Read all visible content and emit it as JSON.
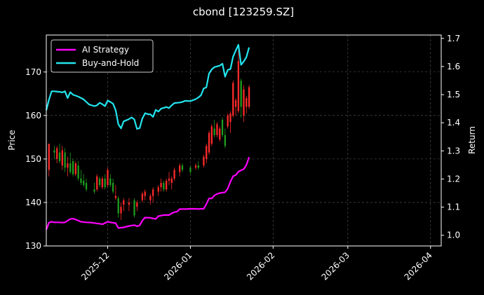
{
  "chart_data": {
    "type": "line",
    "title": "cbond [123259.SZ]",
    "ylabel_left": "Price",
    "ylabel_right": "Return",
    "ylim_left": [
      130,
      178.5
    ],
    "ylim_right": [
      0.962,
      1.712
    ],
    "xlim": [
      "2025-11-08",
      "2026-04-05"
    ],
    "yticks_left": [
      130,
      140,
      150,
      160,
      170
    ],
    "yticks_right": [
      1.0,
      1.1,
      1.2,
      1.3,
      1.4,
      1.5,
      1.6,
      1.7
    ],
    "xticks": [
      {
        "date": "2025-12-01",
        "label": "2025-12"
      },
      {
        "date": "2026-01-01",
        "label": "2026-01"
      },
      {
        "date": "2026-02-01",
        "label": "2026-02"
      },
      {
        "date": "2026-03-01",
        "label": "2026-03"
      },
      {
        "date": "2026-04-01",
        "label": "2026-04"
      }
    ],
    "grid": true,
    "legend_position": "top-left",
    "colors": {
      "ai_strategy": "#ff00ff",
      "buy_and_hold": "#22e5ee",
      "candle_up": "#ff2a2a",
      "candle_down": "#1f9e1f",
      "grid": "#5a5a5a",
      "background": "#000000"
    },
    "series": [
      {
        "name": "AI Strategy",
        "axis": "right",
        "color": "#ff00ff",
        "points": [
          [
            "2025-11-08",
            1.02
          ],
          [
            "2025-11-09",
            1.045
          ],
          [
            "2025-11-10",
            1.048
          ],
          [
            "2025-11-11",
            1.046
          ],
          [
            "2025-11-13",
            1.046
          ],
          [
            "2025-11-14",
            1.045
          ],
          [
            "2025-11-15",
            1.046
          ],
          [
            "2025-11-17",
            1.058
          ],
          [
            "2025-11-18",
            1.059
          ],
          [
            "2025-11-19",
            1.056
          ],
          [
            "2025-11-20",
            1.052
          ],
          [
            "2025-11-21",
            1.048
          ],
          [
            "2025-11-23",
            1.046
          ],
          [
            "2025-11-25",
            1.045
          ],
          [
            "2025-11-27",
            1.042
          ],
          [
            "2025-11-28",
            1.041
          ],
          [
            "2025-11-29",
            1.039
          ],
          [
            "2025-12-01",
            1.048
          ],
          [
            "2025-12-02",
            1.046
          ],
          [
            "2025-12-04",
            1.043
          ],
          [
            "2025-12-05",
            1.026
          ],
          [
            "2025-12-07",
            1.028
          ],
          [
            "2025-12-09",
            1.033
          ],
          [
            "2025-12-11",
            1.036
          ],
          [
            "2025-12-12",
            1.032
          ],
          [
            "2025-12-13",
            1.035
          ],
          [
            "2025-12-14",
            1.052
          ],
          [
            "2025-12-15",
            1.063
          ],
          [
            "2025-12-17",
            1.062
          ],
          [
            "2025-12-19",
            1.058
          ],
          [
            "2025-12-20",
            1.068
          ],
          [
            "2025-12-22",
            1.072
          ],
          [
            "2025-12-24",
            1.072
          ],
          [
            "2025-12-25",
            1.078
          ],
          [
            "2025-12-26",
            1.082
          ],
          [
            "2025-12-27",
            1.084
          ],
          [
            "2025-12-28",
            1.093
          ],
          [
            "2025-12-30",
            1.093
          ],
          [
            "2026-01-01",
            1.094
          ],
          [
            "2026-01-03",
            1.094
          ],
          [
            "2026-01-04",
            1.093
          ],
          [
            "2026-01-05",
            1.094
          ],
          [
            "2026-01-06",
            1.094
          ],
          [
            "2026-01-07",
            1.111
          ],
          [
            "2026-01-08",
            1.131
          ],
          [
            "2026-01-09",
            1.131
          ],
          [
            "2026-01-10",
            1.142
          ],
          [
            "2026-01-11",
            1.147
          ],
          [
            "2026-01-12",
            1.15
          ],
          [
            "2026-01-14",
            1.153
          ],
          [
            "2026-01-15",
            1.166
          ],
          [
            "2026-01-16",
            1.19
          ],
          [
            "2026-01-17",
            1.21
          ],
          [
            "2026-01-18",
            1.214
          ],
          [
            "2026-01-19",
            1.226
          ],
          [
            "2026-01-20",
            1.231
          ],
          [
            "2026-01-21",
            1.235
          ],
          [
            "2026-01-22",
            1.25
          ],
          [
            "2026-01-23",
            1.278
          ]
        ]
      },
      {
        "name": "Buy-and-Hold",
        "axis": "right",
        "color": "#22e5ee",
        "points": [
          [
            "2025-11-08",
            1.445
          ],
          [
            "2025-11-09",
            1.482
          ],
          [
            "2025-11-10",
            1.512
          ],
          [
            "2025-11-11",
            1.512
          ],
          [
            "2025-11-13",
            1.51
          ],
          [
            "2025-11-14",
            1.508
          ],
          [
            "2025-11-15",
            1.512
          ],
          [
            "2025-11-16",
            1.488
          ],
          [
            "2025-11-17",
            1.509
          ],
          [
            "2025-11-18",
            1.5
          ],
          [
            "2025-11-20",
            1.493
          ],
          [
            "2025-11-22",
            1.483
          ],
          [
            "2025-11-23",
            1.474
          ],
          [
            "2025-11-24",
            1.465
          ],
          [
            "2025-11-26",
            1.459
          ],
          [
            "2025-11-27",
            1.462
          ],
          [
            "2025-11-28",
            1.471
          ],
          [
            "2025-11-29",
            1.466
          ],
          [
            "2025-11-30",
            1.459
          ],
          [
            "2025-12-01",
            1.479
          ],
          [
            "2025-12-02",
            1.474
          ],
          [
            "2025-12-03",
            1.468
          ],
          [
            "2025-12-04",
            1.445
          ],
          [
            "2025-12-05",
            1.395
          ],
          [
            "2025-12-06",
            1.38
          ],
          [
            "2025-12-07",
            1.405
          ],
          [
            "2025-12-09",
            1.413
          ],
          [
            "2025-12-10",
            1.419
          ],
          [
            "2025-12-11",
            1.412
          ],
          [
            "2025-12-12",
            1.378
          ],
          [
            "2025-12-13",
            1.381
          ],
          [
            "2025-12-14",
            1.415
          ],
          [
            "2025-12-15",
            1.434
          ],
          [
            "2025-12-16",
            1.431
          ],
          [
            "2025-12-17",
            1.43
          ],
          [
            "2025-12-18",
            1.421
          ],
          [
            "2025-12-19",
            1.446
          ],
          [
            "2025-12-20",
            1.44
          ],
          [
            "2025-12-21",
            1.45
          ],
          [
            "2025-12-22",
            1.453
          ],
          [
            "2025-12-23",
            1.456
          ],
          [
            "2025-12-24",
            1.452
          ],
          [
            "2025-12-25",
            1.462
          ],
          [
            "2025-12-26",
            1.47
          ],
          [
            "2025-12-28",
            1.472
          ],
          [
            "2025-12-29",
            1.474
          ],
          [
            "2025-12-30",
            1.478
          ],
          [
            "2026-01-01",
            1.477
          ],
          [
            "2026-01-03",
            1.484
          ],
          [
            "2026-01-04",
            1.49
          ],
          [
            "2026-01-05",
            1.498
          ],
          [
            "2026-01-06",
            1.522
          ],
          [
            "2026-01-07",
            1.526
          ],
          [
            "2026-01-08",
            1.575
          ],
          [
            "2026-01-09",
            1.59
          ],
          [
            "2026-01-10",
            1.598
          ],
          [
            "2026-01-12",
            1.603
          ],
          [
            "2026-01-13",
            1.61
          ],
          [
            "2026-01-14",
            1.564
          ],
          [
            "2026-01-15",
            1.588
          ],
          [
            "2026-01-16",
            1.591
          ],
          [
            "2026-01-17",
            1.635
          ],
          [
            "2026-01-18",
            1.657
          ],
          [
            "2026-01-19",
            1.677
          ],
          [
            "2026-01-20",
            1.606
          ],
          [
            "2026-01-21",
            1.618
          ],
          [
            "2026-01-22",
            1.634
          ],
          [
            "2026-01-23",
            1.668
          ]
        ]
      }
    ],
    "candles": [
      [
        "2025-11-09",
        147.5,
        153.5,
        146.0,
        153.5
      ],
      [
        "2025-11-11",
        152.0,
        153.0,
        150.0,
        151.5
      ],
      [
        "2025-11-12",
        150.0,
        153.0,
        149.0,
        152.5
      ],
      [
        "2025-11-13",
        151.5,
        153.5,
        149.0,
        149.5
      ],
      [
        "2025-11-14",
        148.5,
        153.0,
        147.5,
        152.0
      ],
      [
        "2025-11-15",
        151.5,
        152.5,
        147.0,
        148.0
      ],
      [
        "2025-11-16",
        148.0,
        150.5,
        146.0,
        149.0
      ],
      [
        "2025-11-17",
        149.0,
        151.5,
        146.5,
        147.0
      ],
      [
        "2025-11-18",
        149.5,
        150.0,
        146.0,
        146.5
      ],
      [
        "2025-11-19",
        146.5,
        149.5,
        146.0,
        149.0
      ],
      [
        "2025-11-20",
        148.5,
        149.5,
        145.0,
        145.5
      ],
      [
        "2025-11-21",
        145.5,
        147.5,
        144.0,
        144.5
      ],
      [
        "2025-11-22",
        145.0,
        146.5,
        143.5,
        144.0
      ],
      [
        "2025-11-23",
        144.5,
        145.5,
        142.5,
        143.0
      ],
      [
        "2025-11-26",
        143.0,
        144.5,
        142.0,
        142.5
      ],
      [
        "2025-11-27",
        143.0,
        146.5,
        142.5,
        146.0
      ],
      [
        "2025-11-28",
        145.5,
        146.0,
        143.5,
        144.0
      ],
      [
        "2025-11-29",
        143.5,
        146.0,
        143.0,
        145.5
      ],
      [
        "2025-11-30",
        145.5,
        146.5,
        143.0,
        143.5
      ],
      [
        "2025-12-01",
        144.0,
        148.0,
        143.5,
        147.5
      ],
      [
        "2025-12-02",
        145.5,
        146.5,
        143.5,
        144.0
      ],
      [
        "2025-12-03",
        144.5,
        145.5,
        142.0,
        142.5
      ],
      [
        "2025-12-04",
        141.0,
        144.0,
        140.5,
        141.5
      ],
      [
        "2025-12-05",
        141.0,
        141.5,
        136.5,
        137.5
      ],
      [
        "2025-12-06",
        137.5,
        140.0,
        136.0,
        139.0
      ],
      [
        "2025-12-07",
        139.5,
        141.0,
        138.0,
        140.5
      ],
      [
        "2025-12-09",
        139.5,
        141.0,
        138.0,
        140.0
      ],
      [
        "2025-12-11",
        140.5,
        141.0,
        136.5,
        137.0
      ],
      [
        "2025-12-12",
        139.0,
        140.5,
        138.0,
        140.0
      ],
      [
        "2025-12-14",
        140.5,
        142.5,
        140.0,
        142.0
      ],
      [
        "2025-12-15",
        141.5,
        143.0,
        140.5,
        142.5
      ],
      [
        "2025-12-17",
        140.5,
        142.0,
        139.5,
        141.5
      ],
      [
        "2025-12-18",
        141.5,
        143.5,
        140.0,
        143.0
      ],
      [
        "2025-12-20",
        142.5,
        144.0,
        141.5,
        143.5
      ],
      [
        "2025-12-21",
        143.5,
        145.5,
        142.5,
        144.5
      ],
      [
        "2025-12-22",
        144.5,
        145.0,
        142.5,
        143.0
      ],
      [
        "2025-12-23",
        143.0,
        145.5,
        142.5,
        145.0
      ],
      [
        "2025-12-24",
        145.0,
        147.0,
        144.0,
        145.5
      ],
      [
        "2025-12-25",
        144.5,
        146.0,
        143.0,
        145.5
      ],
      [
        "2025-12-26",
        145.5,
        148.0,
        145.0,
        147.5
      ],
      [
        "2025-12-28",
        147.0,
        149.0,
        146.0,
        148.5
      ],
      [
        "2025-12-29",
        148.5,
        149.0,
        147.0,
        147.5
      ],
      [
        "2026-01-01",
        148.0,
        148.5,
        146.5,
        147.0
      ],
      [
        "2026-01-03",
        148.0,
        149.0,
        147.5,
        148.5
      ],
      [
        "2026-01-04",
        148.5,
        149.5,
        147.5,
        148.0
      ],
      [
        "2026-01-06",
        148.5,
        151.0,
        148.0,
        150.5
      ],
      [
        "2026-01-07",
        150.0,
        153.5,
        149.0,
        153.0
      ],
      [
        "2026-01-08",
        151.5,
        156.5,
        151.0,
        156.0
      ],
      [
        "2026-01-09",
        153.5,
        158.0,
        153.0,
        157.5
      ],
      [
        "2026-01-10",
        157.0,
        159.0,
        155.0,
        155.5
      ],
      [
        "2026-01-11",
        155.5,
        158.5,
        155.0,
        158.0
      ],
      [
        "2026-01-12",
        154.5,
        157.5,
        154.0,
        157.0
      ],
      [
        "2026-01-13",
        159.0,
        159.5,
        155.0,
        155.5
      ],
      [
        "2026-01-14",
        155.5,
        157.0,
        152.5,
        153.0
      ],
      [
        "2026-01-15",
        157.5,
        160.5,
        157.0,
        160.0
      ],
      [
        "2026-01-16",
        158.5,
        161.0,
        156.0,
        160.5
      ],
      [
        "2026-01-17",
        160.0,
        168.0,
        159.5,
        167.5
      ],
      [
        "2026-01-18",
        162.0,
        164.0,
        160.0,
        163.5
      ],
      [
        "2026-01-19",
        161.0,
        175.0,
        160.5,
        172.5
      ],
      [
        "2026-01-20",
        168.0,
        168.5,
        159.5,
        162.0
      ],
      [
        "2026-01-21",
        160.0,
        167.0,
        158.5,
        166.0
      ],
      [
        "2026-01-22",
        162.0,
        164.5,
        160.5,
        164.0
      ],
      [
        "2026-01-23",
        162.0,
        167.0,
        161.5,
        166.5
      ]
    ]
  }
}
